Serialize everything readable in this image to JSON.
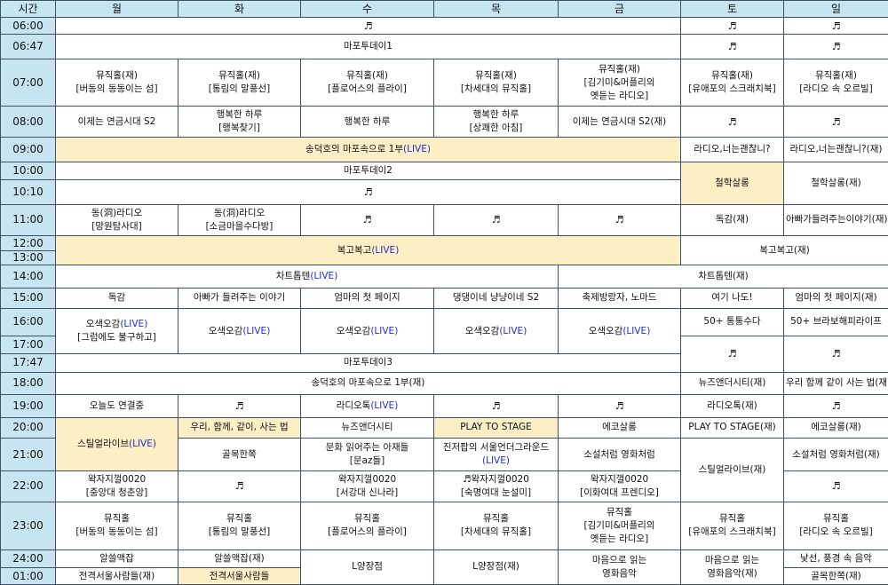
{
  "header": [
    "시간",
    "월",
    "화",
    "수",
    "목",
    "금",
    "토",
    "일"
  ],
  "times": [
    "06:00",
    "06:47",
    "07:00",
    "08:00",
    "09:00",
    "10:00",
    "10:10",
    "11:00",
    "12:00",
    "13:00",
    "14:00",
    "15:00",
    "16:00",
    "17:00",
    "17:47",
    "18:00",
    "19:00",
    "20:00",
    "21:00",
    "22:00",
    "23:00",
    "24:00",
    "01:00"
  ],
  "note": "♬",
  "live_tag": "(LIVE)",
  "colors": {
    "header_bg": "#c6e5f0",
    "live_bg": "#fcefc6",
    "live_text": "#1f2fd0",
    "border": "#3d4f63"
  },
  "programs": {
    "madeToday1": "마포투데이1",
    "madeToday2": "마포투데이2",
    "madeToday3": "마포투데이3",
    "mj_mon_a": "뮤직홀(재)",
    "mj_mon_b": "[버동의 동동이는 섬]",
    "mj_tue_a": "뮤직홀(재)",
    "mj_tue_b": "[통림의 말풍선]",
    "mj_wed_a": "뮤직홀(재)",
    "mj_wed_b": "[플로어스의 플라이]",
    "mj_thu_a": "뮤직홀(재)",
    "mj_thu_b": "[차세대의 뮤직홀]",
    "mj_fri_a": "뮤직홀(재)",
    "mj_fri_b": "[김기미&머플리의",
    "mj_fri_c": "옛듣는 라디오]",
    "mj_sat_a": "뮤직홀(재)",
    "mj_sat_b": "[유애포의 스크래치북]",
    "mj_sun_a": "뮤직홀(재)",
    "mj_sun_b": "[라디오 속 오르빌]",
    "r08_mon": "이제는 연금시대 S2",
    "r08_tue_a": "행복한 하루",
    "r08_tue_b": "[행복찾기]",
    "r08_wed": "행복한 하루",
    "r08_thu_a": "행복한 하루",
    "r08_thu_b": "[상쾌한 아침]",
    "r08_fri": "이제는 연금시대 S2(재)",
    "songdeok_a": "송덕호의 마포속으로 1부",
    "radio_ok_sat": "라디오,너는괜찮니?",
    "radio_ok_sun": "라디오,너는괜찮니?(재)",
    "philo": "철학살롱",
    "philo_re": "철학살롱(재)",
    "dong_mon_a": "동(洞)라디오",
    "dong_mon_b": "[망원탐사대]",
    "dong_tue_a": "동(洞)라디오",
    "dong_tue_b": "[소금마을수다방]",
    "dokgam_re": "독감(재)",
    "dad_story_re": "아빠가들려주는이야기(재)",
    "bokgo": "복고복고",
    "bokgo_re": "복고복고(재)",
    "chart": "차트톱텐",
    "chart_re": "차트톱텐(재)",
    "r15_mon": "독감",
    "r15_tue": "아빠가 들려주는 이야기",
    "r15_wed": "엄마의 첫 페이지",
    "r15_thu": "댕댕이네 냥냥이네 S2",
    "r15_fri": "축제방랑자, 노마드",
    "r15_sat": "여기 나도!",
    "r15_sun": "엄마의 첫 페이지(재)",
    "osaek": "오색오감",
    "osaek_sub": "[그럼에도 불구하고]",
    "r16_sat": "50+ 통통수다",
    "r16_sun": "50+ 브라보해피라이프",
    "songdeok_re": "송덕호의 마포속으로 1부(재)",
    "news_city_re": "뉴즈앤더시티(재)",
    "together_re": "우리 함께 같이 사는 법(재)",
    "r19_mon": "오늘도 연결중",
    "radio_ok_live_a": "라디오톡",
    "radio_ok_re": "라디오톡(재)",
    "steel_a": "스틸얼라이브",
    "together": "우리, 함께, 같이, 사는 법",
    "news_city": "뉴즈앤더시티",
    "play_stage": "PLAY TO STAGE",
    "eco": "에코살롱",
    "play_stage_re": "PLAY TO STAGE(재)",
    "eco_re": "에코살롱(재)",
    "golmok": "골목한쪽",
    "book_a": "문화 읽어주는 아재들",
    "book_b": "[문az들]",
    "jin_a": "진저팝의 서울언더그라운드",
    "novel": "소설처럼 영화처럼",
    "steel_re": "스틸얼라이브(재)",
    "novel_re": "소설처럼 영화처럼(재)",
    "wak_mon_a": "왁자지껄0020",
    "wak_mon_b": "[중앙대 청춘앙]",
    "wak_wed_a": "왁자지껄0020",
    "wak_wed_b": "[서강대 신나라]",
    "wak_thu_a": "♬왁자지껄0020",
    "wak_thu_b": "[숙명여대 눈설미]",
    "wak_fri_a": "왁자지껄0020",
    "wak_fri_b": "[이화여대 프렌디오]",
    "mjh_mon_a": "뮤직홀",
    "mjh_mon_b": "[버동의 동동이는 섬]",
    "mjh_tue_a": "뮤직홀",
    "mjh_tue_b": "[통림의 말풍선]",
    "mjh_wed_a": "뮤직홀",
    "mjh_wed_b": "[플로어스의 플라이]",
    "mjh_thu_a": "뮤직홀",
    "mjh_thu_b": "[차세대의 뮤직홀]",
    "mjh_fri_a": "뮤직홀",
    "mjh_fri_b": "[김기미&머플리의",
    "mjh_fri_c": "옛듣는 라디오]",
    "mjh_sat_a": "뮤직홀",
    "mjh_sat_b": "[유애포의 스크래치북]",
    "mjh_sun_a": "뮤직홀",
    "mjh_sun_b": "[라디오 속 오르빌]",
    "alsl": "알쓸맥잡",
    "alsl_re": "알쓸맥잡(재)",
    "lyang": "L양장점",
    "lyang_re": "L양장점(재)",
    "mind_a": "마음으로 읽는",
    "mind_b": "영화음악",
    "mind_re_a": "마음으로 읽는",
    "mind_re_b": "영화음악(재)",
    "strange": "낯선, 풍경 속 음악",
    "golmok_re": "골목한쪽(재)",
    "seoul_ppl_re": "전격서울사람들(재)",
    "seoul_ppl": "전격서울사람들"
  }
}
